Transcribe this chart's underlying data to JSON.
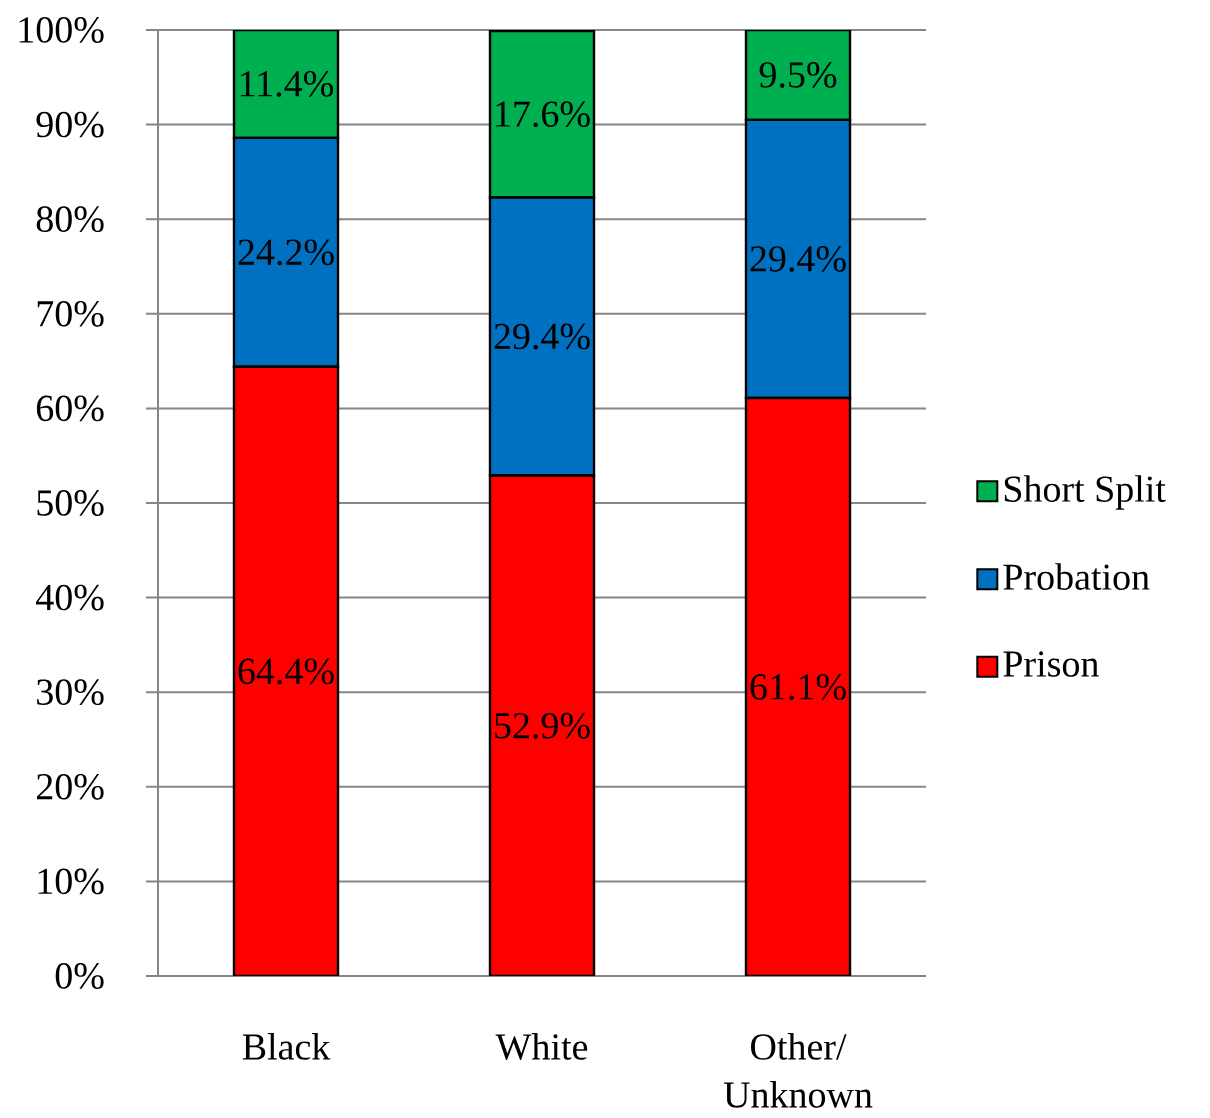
{
  "chart_data": {
    "type": "bar",
    "stacked": true,
    "categories": [
      "Black",
      "White",
      "Other/ Unknown"
    ],
    "series": [
      {
        "name": "Prison",
        "color": "#ff0000",
        "values": [
          64.4,
          52.9,
          61.1
        ],
        "value_labels": [
          "64.4%",
          "52.9%",
          "61.1%"
        ]
      },
      {
        "name": "Probation",
        "color": "#0070c0",
        "values": [
          24.2,
          29.4,
          29.4
        ],
        "value_labels": [
          "24.2%",
          "29.4%",
          "29.4%"
        ]
      },
      {
        "name": "Short Split",
        "color": "#00b050",
        "values": [
          11.4,
          17.6,
          9.5
        ],
        "value_labels": [
          "11.4%",
          "17.6%",
          "9.5%"
        ]
      }
    ],
    "ylim": [
      0,
      100
    ],
    "yticks": [
      {
        "value": 0,
        "label": "0%"
      },
      {
        "value": 10,
        "label": "10%"
      },
      {
        "value": 20,
        "label": "20%"
      },
      {
        "value": 30,
        "label": "30%"
      },
      {
        "value": 40,
        "label": "40%"
      },
      {
        "value": 50,
        "label": "50%"
      },
      {
        "value": 60,
        "label": "60%"
      },
      {
        "value": 70,
        "label": "70%"
      },
      {
        "value": 80,
        "label": "80%"
      },
      {
        "value": 90,
        "label": "90%"
      },
      {
        "value": 100,
        "label": "100%"
      }
    ],
    "grid": "y",
    "legend": "right"
  }
}
